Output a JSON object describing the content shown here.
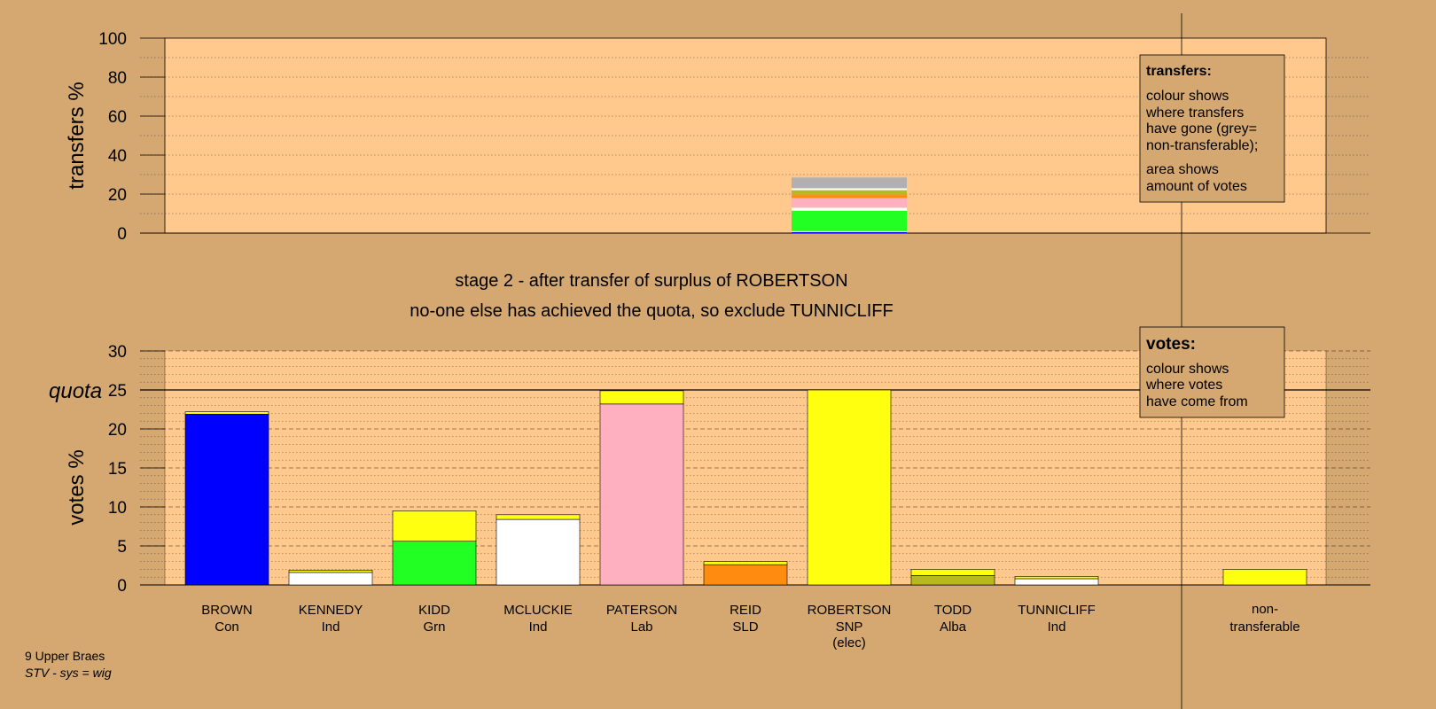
{
  "footer": {
    "ward": "9 Upper Braes",
    "system": "STV - sys = wig"
  },
  "stage": {
    "line1": "stage 2 - after transfer of surplus of ROBERTSON",
    "line2": "no-one else has achieved the quota, so exclude TUNNICLIFF"
  },
  "transfers_legend": {
    "title": "transfers:",
    "lines1": [
      "colour shows",
      "where transfers",
      "have gone (grey=",
      "non-transferable);"
    ],
    "lines2": [
      "area shows",
      "amount of votes"
    ]
  },
  "votes_legend": {
    "title": "votes:",
    "lines": [
      "colour shows",
      "where votes",
      "have come from"
    ]
  },
  "chart_data": [
    {
      "type": "bar",
      "ylabel": "transfers %",
      "ylim": [
        0,
        100
      ],
      "yticks": [
        0,
        20,
        40,
        60,
        80,
        100
      ],
      "grid": "dotted every 10",
      "stacked_bar": {
        "category": "ROBERTSON",
        "segments": [
          {
            "to": "BROWN",
            "value": 0.5,
            "color": "#0000ff"
          },
          {
            "to": "KENNEDY",
            "value": 0.5,
            "color": "#ffffff"
          },
          {
            "to": "KIDD",
            "value": 10.5,
            "color": "#22ff22"
          },
          {
            "to": "MCLUCKIE",
            "value": 1.5,
            "color": "#ffffff"
          },
          {
            "to": "PATERSON",
            "value": 5.0,
            "color": "#ffb0c0"
          },
          {
            "to": "REID",
            "value": 1.5,
            "color": "#ff8c10"
          },
          {
            "to": "TODD",
            "value": 2.5,
            "color": "#b8b820"
          },
          {
            "to": "TUNNICLIFF",
            "value": 1.0,
            "color": "#ffffff"
          },
          {
            "to": "non-transferable",
            "value": 5.5,
            "color": "#b0b0b0"
          }
        ]
      }
    },
    {
      "type": "bar",
      "ylabel": "votes %",
      "ylim": [
        0,
        30
      ],
      "yticks": [
        0,
        5,
        10,
        15,
        20,
        25,
        30
      ],
      "quota": 25,
      "quota_label": "quota",
      "candidates": [
        {
          "name": "BROWN",
          "party": "Con",
          "elected": "",
          "segments": [
            {
              "value": 21.9,
              "color": "#0000ff"
            },
            {
              "value": 0.3,
              "color": "#ffff10"
            }
          ]
        },
        {
          "name": "KENNEDY",
          "party": "Ind",
          "elected": "",
          "segments": [
            {
              "value": 1.6,
              "color": "#ffffff"
            },
            {
              "value": 0.3,
              "color": "#ffff10"
            }
          ]
        },
        {
          "name": "KIDD",
          "party": "Grn",
          "elected": "",
          "segments": [
            {
              "value": 5.6,
              "color": "#22ff22"
            },
            {
              "value": 3.9,
              "color": "#ffff10"
            }
          ]
        },
        {
          "name": "MCLUCKIE",
          "party": "Ind",
          "elected": "",
          "segments": [
            {
              "value": 8.4,
              "color": "#ffffff"
            },
            {
              "value": 0.6,
              "color": "#ffff10"
            }
          ]
        },
        {
          "name": "PATERSON",
          "party": "Lab",
          "elected": "",
          "segments": [
            {
              "value": 23.2,
              "color": "#ffb0c0"
            },
            {
              "value": 1.7,
              "color": "#ffff10"
            }
          ]
        },
        {
          "name": "REID",
          "party": "SLD",
          "elected": "",
          "segments": [
            {
              "value": 2.6,
              "color": "#ff8c10"
            },
            {
              "value": 0.4,
              "color": "#ffff10"
            }
          ]
        },
        {
          "name": "ROBERTSON",
          "party": "SNP",
          "elected": "(elec)",
          "segments": [
            {
              "value": 25.0,
              "color": "#ffff10"
            }
          ]
        },
        {
          "name": "TODD",
          "party": "Alba",
          "elected": "",
          "segments": [
            {
              "value": 1.2,
              "color": "#b8b820"
            },
            {
              "value": 0.8,
              "color": "#ffff10"
            }
          ]
        },
        {
          "name": "TUNNICLIFF",
          "party": "Ind",
          "elected": "",
          "segments": [
            {
              "value": 0.8,
              "color": "#ffffff"
            },
            {
              "value": 0.3,
              "color": "#ffff10"
            }
          ]
        }
      ],
      "nontransferable": {
        "label1": "non-",
        "label2": "transferable",
        "segments": [
          {
            "value": 2.0,
            "color": "#ffff10"
          }
        ]
      }
    }
  ]
}
